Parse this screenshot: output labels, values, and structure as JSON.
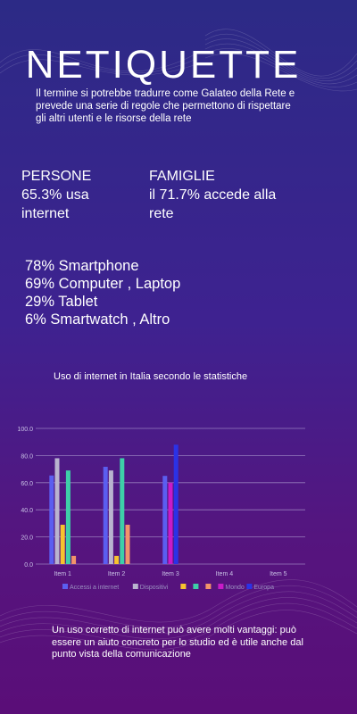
{
  "title": "NETIQUETTE",
  "intro": "Il termine si potrebbe tradurre come Galateo della Rete e prevede una serie di regole che permettono di rispettare gli altri utenti e le risorse della rete",
  "stats": {
    "persone": {
      "label": "PERSONE",
      "value": "65.3% usa internet"
    },
    "famiglie": {
      "label": "FAMIGLIE",
      "value": "il 71.7% accede alla rete"
    }
  },
  "devices": [
    "78% Smartphone",
    "69% Computer , Laptop",
    "29% Tablet",
    "6% Smartwatch , Altro"
  ],
  "chart_title": "Uso di internet in Italia secondo le statistiche",
  "outro": "Un uso corretto di internet può avere molti vantaggi: può essere un aiuto concreto per lo studio ed è utile anche dal punto vista della comunicazione",
  "chart_data": {
    "type": "bar",
    "categories": [
      "Item 1",
      "Item 2",
      "Item 3",
      "Item 4",
      "Item 5"
    ],
    "ylim": [
      0,
      100
    ],
    "ytick_labels": [
      "0.0",
      "20.0",
      "40.0",
      "60.0",
      "80.0",
      "100.0"
    ],
    "grid": true,
    "legend_position": "bottom",
    "series": [
      {
        "name": "Accessi a internet",
        "color": "#5b5ef0",
        "values": [
          65.3,
          71.7,
          65,
          null,
          null
        ]
      },
      {
        "name": "Dispositivi",
        "color": "#b9b3cf",
        "values": [
          78,
          69,
          null,
          null,
          null
        ]
      },
      {
        "name": "",
        "color": "#f7c32e",
        "values": [
          29,
          6,
          null,
          null,
          null
        ]
      },
      {
        "name": "",
        "color": "#3ecfa8",
        "values": [
          69,
          78,
          null,
          null,
          null
        ]
      },
      {
        "name": "",
        "color": "#f2946a",
        "values": [
          6,
          29,
          null,
          null,
          null
        ]
      },
      {
        "name": "Mondo",
        "color": "#c81bc8",
        "values": [
          null,
          null,
          60,
          null,
          null
        ]
      },
      {
        "name": "Europa",
        "color": "#2b32e6",
        "values": [
          null,
          null,
          88,
          null,
          null
        ]
      }
    ]
  }
}
